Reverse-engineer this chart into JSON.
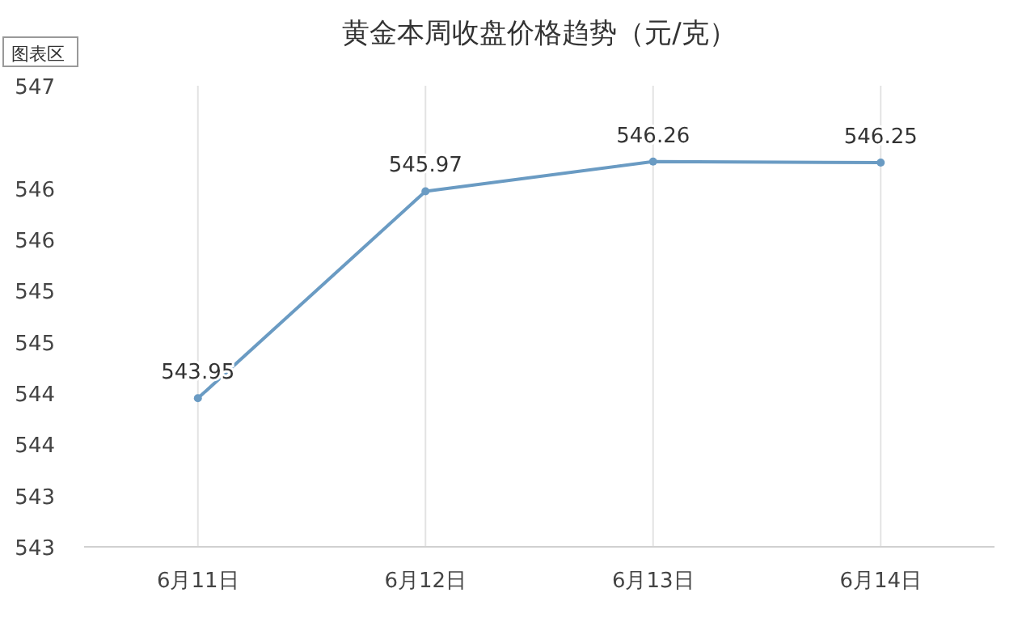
{
  "chart_data": {
    "type": "line",
    "title": "黄金本周收盘价格趋势（元/克）",
    "categories": [
      "6月11日",
      "6月12日",
      "6月13日",
      "6月14日"
    ],
    "values": [
      543.95,
      545.97,
      546.26,
      546.25
    ],
    "color": "#6a9bc3",
    "marker": "circle",
    "data_labels": true,
    "grid": "x",
    "ylim": [
      542.5,
      547
    ],
    "yticks": [
      {
        "value": 542.5,
        "label": "543"
      },
      543,
      {
        "value": 543.5,
        "label": "544"
      },
      544,
      {
        "value": 544.5,
        "label": "545"
      },
      545,
      {
        "value": 545.5,
        "label": "546"
      },
      546,
      547
    ],
    "annotations": [
      "图表区"
    ]
  }
}
